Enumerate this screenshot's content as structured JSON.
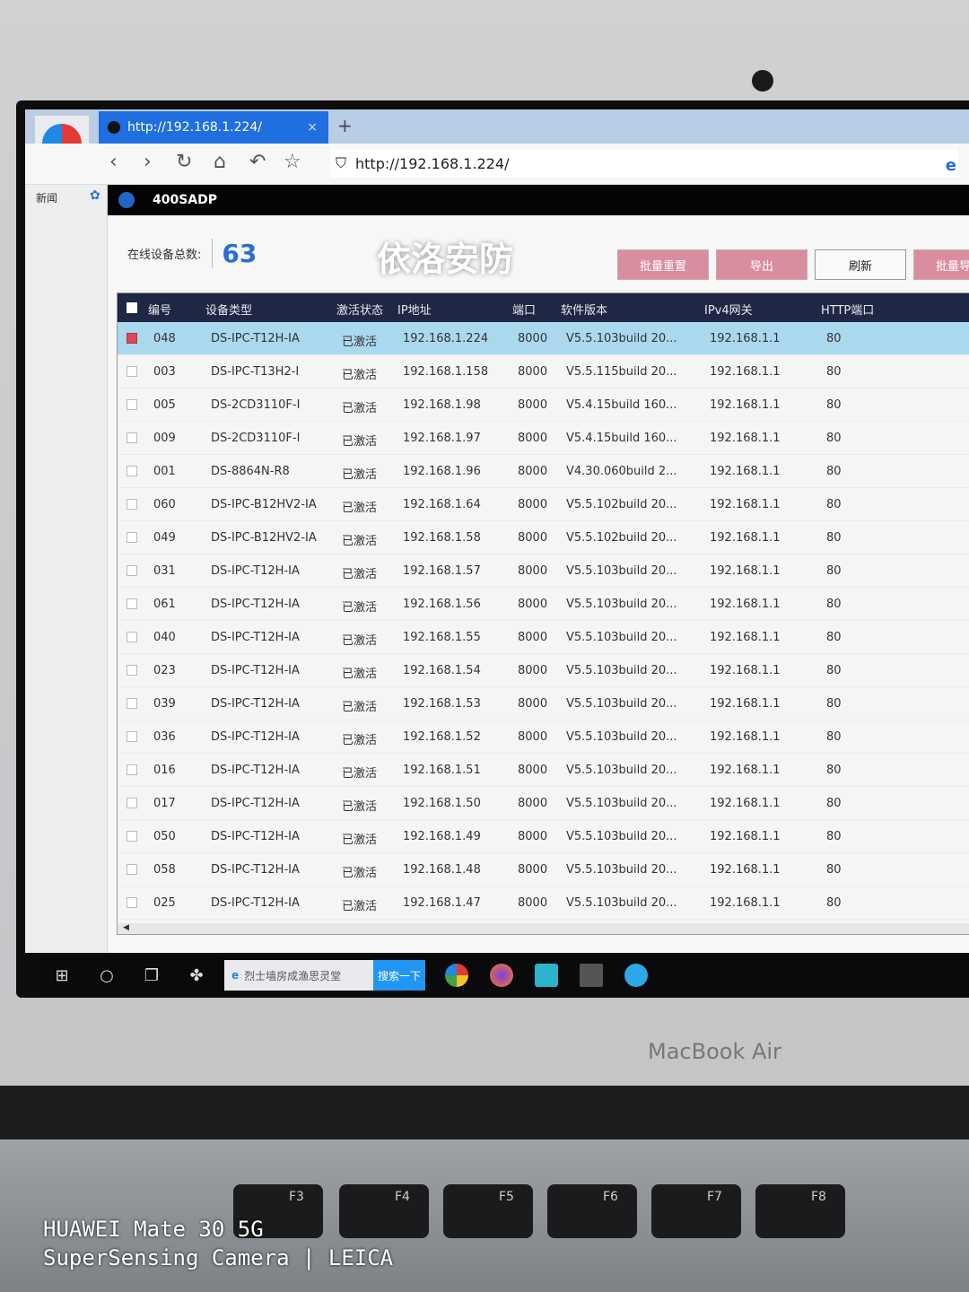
{
  "browser": {
    "tab_title": "http://192.168.1.224/",
    "tab_close": "×",
    "new_tab": "+",
    "url": "http://192.168.1.224/",
    "nav_icons": [
      "back-icon",
      "forward-icon",
      "refresh-icon",
      "home-icon",
      "undo-icon",
      "star-icon"
    ],
    "sidebar_news": "新闻"
  },
  "app": {
    "title": "400SADP",
    "online_label": "在线设备总数:",
    "online_count": "63",
    "buttons": [
      "批量重置",
      "导出",
      "刷新",
      "批量导出"
    ],
    "columns": [
      "编号",
      "设备类型",
      "激活状态",
      "IP地址",
      "端口",
      "软件版本",
      "IPv4网关",
      "HTTP端口"
    ],
    "rows": [
      [
        "048",
        "DS-IPC-T12H-IA",
        "已激活",
        "192.168.1.224",
        "8000",
        "V5.5.103build 20...",
        "192.168.1.1",
        "80"
      ],
      [
        "003",
        "DS-IPC-T13H2-I",
        "已激活",
        "192.168.1.158",
        "8000",
        "V5.5.115build 20...",
        "192.168.1.1",
        "80"
      ],
      [
        "005",
        "DS-2CD3110F-I",
        "已激活",
        "192.168.1.98",
        "8000",
        "V5.4.15build 160...",
        "192.168.1.1",
        "80"
      ],
      [
        "009",
        "DS-2CD3110F-I",
        "已激活",
        "192.168.1.97",
        "8000",
        "V5.4.15build 160...",
        "192.168.1.1",
        "80"
      ],
      [
        "001",
        "DS-8864N-R8",
        "已激活",
        "192.168.1.96",
        "8000",
        "V4.30.060build 2...",
        "192.168.1.1",
        "80"
      ],
      [
        "060",
        "DS-IPC-B12HV2-IA",
        "已激活",
        "192.168.1.64",
        "8000",
        "V5.5.102build 20...",
        "192.168.1.1",
        "80"
      ],
      [
        "049",
        "DS-IPC-B12HV2-IA",
        "已激活",
        "192.168.1.58",
        "8000",
        "V5.5.102build 20...",
        "192.168.1.1",
        "80"
      ],
      [
        "031",
        "DS-IPC-T12H-IA",
        "已激活",
        "192.168.1.57",
        "8000",
        "V5.5.103build 20...",
        "192.168.1.1",
        "80"
      ],
      [
        "061",
        "DS-IPC-T12H-IA",
        "已激活",
        "192.168.1.56",
        "8000",
        "V5.5.103build 20...",
        "192.168.1.1",
        "80"
      ],
      [
        "040",
        "DS-IPC-T12H-IA",
        "已激活",
        "192.168.1.55",
        "8000",
        "V5.5.103build 20...",
        "192.168.1.1",
        "80"
      ],
      [
        "023",
        "DS-IPC-T12H-IA",
        "已激活",
        "192.168.1.54",
        "8000",
        "V5.5.103build 20...",
        "192.168.1.1",
        "80"
      ],
      [
        "039",
        "DS-IPC-T12H-IA",
        "已激活",
        "192.168.1.53",
        "8000",
        "V5.5.103build 20...",
        "192.168.1.1",
        "80"
      ],
      [
        "036",
        "DS-IPC-T12H-IA",
        "已激活",
        "192.168.1.52",
        "8000",
        "V5.5.103build 20...",
        "192.168.1.1",
        "80"
      ],
      [
        "016",
        "DS-IPC-T12H-IA",
        "已激活",
        "192.168.1.51",
        "8000",
        "V5.5.103build 20...",
        "192.168.1.1",
        "80"
      ],
      [
        "017",
        "DS-IPC-T12H-IA",
        "已激活",
        "192.168.1.50",
        "8000",
        "V5.5.103build 20...",
        "192.168.1.1",
        "80"
      ],
      [
        "050",
        "DS-IPC-T12H-IA",
        "已激活",
        "192.168.1.49",
        "8000",
        "V5.5.103build 20...",
        "192.168.1.1",
        "80"
      ],
      [
        "058",
        "DS-IPC-T12H-IA",
        "已激活",
        "192.168.1.48",
        "8000",
        "V5.5.103build 20...",
        "192.168.1.1",
        "80"
      ],
      [
        "025",
        "DS-IPC-T12H-IA",
        "已激活",
        "192.168.1.47",
        "8000",
        "V5.5.103build 20...",
        "192.168.1.1",
        "80"
      ]
    ],
    "selected_row": 0,
    "watermark": "依洛安防"
  },
  "taskbar": {
    "search_text": "烈士墙房成渔思灵堂",
    "search_button": "搜索一下"
  },
  "device": {
    "brand": "MacBook Air",
    "keys": [
      "F3",
      "F4",
      "F5",
      "F6",
      "F7",
      "F8"
    ],
    "camera_line1": "HUAWEI Mate 30 5G",
    "camera_line2": "SuperSensing Camera | LEICA"
  },
  "colors": {
    "accent": "#2a6fd3",
    "header": "#1f2744",
    "selected": "#a9d8ef",
    "button": "#d98ea0"
  }
}
